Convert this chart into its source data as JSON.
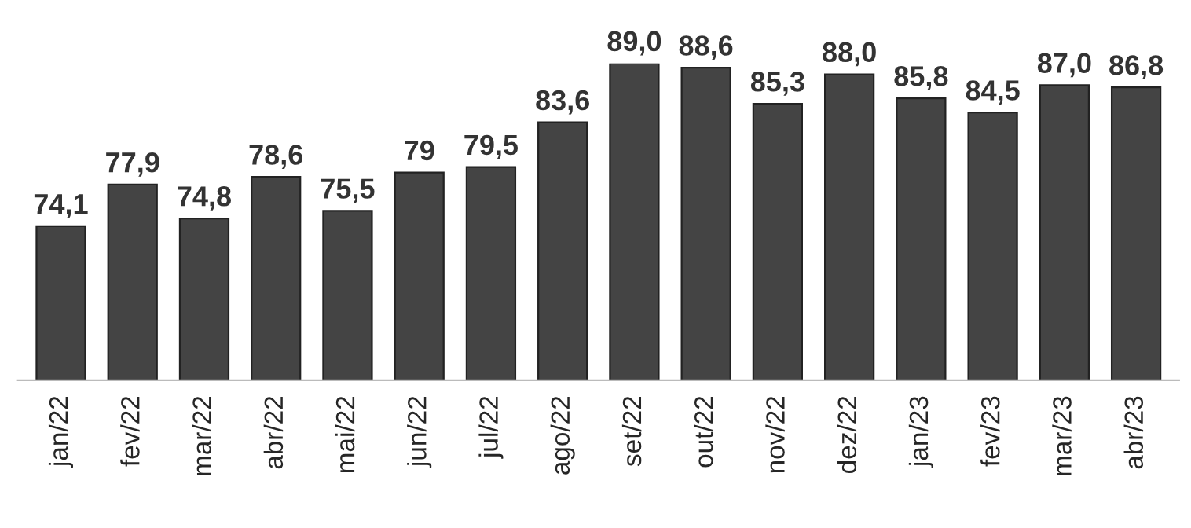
{
  "chart_data": {
    "type": "bar",
    "categories": [
      "jan/22",
      "fev/22",
      "mar/22",
      "abr/22",
      "mai/22",
      "jun/22",
      "jul/22",
      "ago/22",
      "set/22",
      "out/22",
      "nov/22",
      "dez/22",
      "jan/23",
      "fev/23",
      "mar/23",
      "abr/23"
    ],
    "values": [
      74.1,
      77.9,
      74.8,
      78.6,
      75.5,
      79,
      79.5,
      83.6,
      89.0,
      88.6,
      85.3,
      88.0,
      85.8,
      84.5,
      87.0,
      86.8
    ],
    "value_labels": [
      "74,1",
      "77,9",
      "74,8",
      "78,6",
      "75,5",
      "79",
      "79,5",
      "83,6",
      "89,0",
      "88,6",
      "85,3",
      "88,0",
      "85,8",
      "84,5",
      "87,0",
      "86,8"
    ],
    "color": "#444444",
    "ylim": [
      60,
      89
    ],
    "grid": false
  }
}
